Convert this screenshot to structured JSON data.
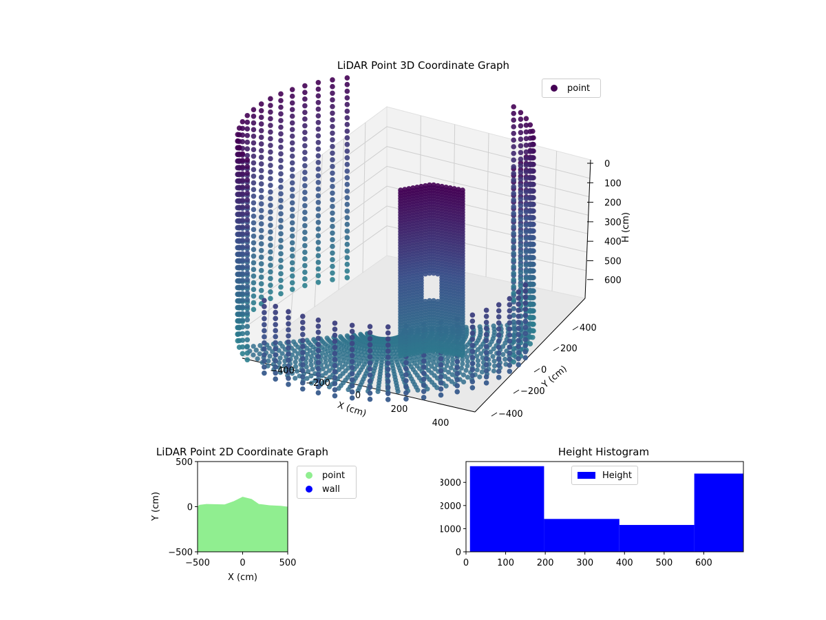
{
  "chart_data": [
    {
      "type": "scatter3d",
      "title": "LiDAR Point 3D Coordinate Graph",
      "xlabel": "X (cm)",
      "ylabel": "Y (cm)",
      "zlabel": "H (cm)",
      "legend": [
        "point"
      ],
      "legend_placement": "top-right",
      "colormap": "viridis",
      "x_ticks": [
        "-400",
        "-200",
        "0",
        "200",
        "400"
      ],
      "y_ticks": [
        "-400",
        "-200",
        "0",
        "200",
        "400"
      ],
      "z_ticks": [
        "0",
        "100",
        "200",
        "300",
        "400",
        "500",
        "600"
      ],
      "z_inverted": true,
      "grid": true,
      "series": [
        {
          "name": "point",
          "colors": {
            "high": "#440154",
            "mid": "#3b528b",
            "low": "#2c7f8e"
          },
          "structures": [
            {
              "shape": "curved wall",
              "angle_range_deg": [
                105,
                205
              ],
              "radius": 470,
              "height_range": [
                0,
                660
              ]
            },
            {
              "shape": "curved wall",
              "angle_range_deg": [
                330,
                390
              ],
              "radius": 470,
              "height_range": [
                0,
                640
              ]
            },
            {
              "shape": "pillar",
              "center": [
                0,
                120
              ],
              "radius": 90,
              "height_range": [
                0,
                660
              ]
            },
            {
              "shape": "floor arc",
              "angle_range_deg": [
                200,
                360
              ],
              "radius": 470,
              "height": 660
            }
          ]
        }
      ]
    },
    {
      "type": "scatter",
      "title": "LiDAR Point 2D Coordinate Graph",
      "xlabel": "X (cm)",
      "ylabel": "Y (cm)",
      "xlim": [
        -500,
        500
      ],
      "ylim": [
        -500,
        500
      ],
      "x_ticks": [
        "-500",
        "0",
        "500"
      ],
      "y_ticks": [
        "500",
        "0",
        "-500"
      ],
      "legend": [
        {
          "name": "point",
          "color": "#90ee90"
        },
        {
          "name": "wall",
          "color": "#0000ff"
        }
      ],
      "legend_placement": "outside-right",
      "series": [
        {
          "name": "point",
          "color": "#90ee90",
          "top_boundary": [
            [
              -500,
              0
            ],
            [
              -480,
              20
            ],
            [
              -400,
              30
            ],
            [
              -200,
              25
            ],
            [
              -100,
              60
            ],
            [
              0,
              110
            ],
            [
              100,
              85
            ],
            [
              180,
              30
            ],
            [
              300,
              15
            ],
            [
              420,
              10
            ],
            [
              500,
              0
            ]
          ],
          "bottom": -500
        }
      ]
    },
    {
      "type": "bar",
      "subtype": "histogram",
      "title": "Height Histogram",
      "xlabel": "",
      "ylabel": "",
      "legend": [
        "Height"
      ],
      "legend_placement": "top-center",
      "color": "#0000ff",
      "xlim": [
        0,
        700
      ],
      "ylim": [
        0,
        3900
      ],
      "x_ticks": [
        "0",
        "100",
        "200",
        "300",
        "400",
        "500",
        "600"
      ],
      "y_ticks": [
        "0",
        "1000",
        "2000",
        "3000"
      ],
      "bins": [
        {
          "from": 10,
          "to": 197,
          "count": 3700
        },
        {
          "from": 197,
          "to": 387,
          "count": 1420
        },
        {
          "from": 387,
          "to": 576,
          "count": 1160
        },
        {
          "from": 576,
          "to": 700,
          "count": 3380
        }
      ]
    }
  ]
}
